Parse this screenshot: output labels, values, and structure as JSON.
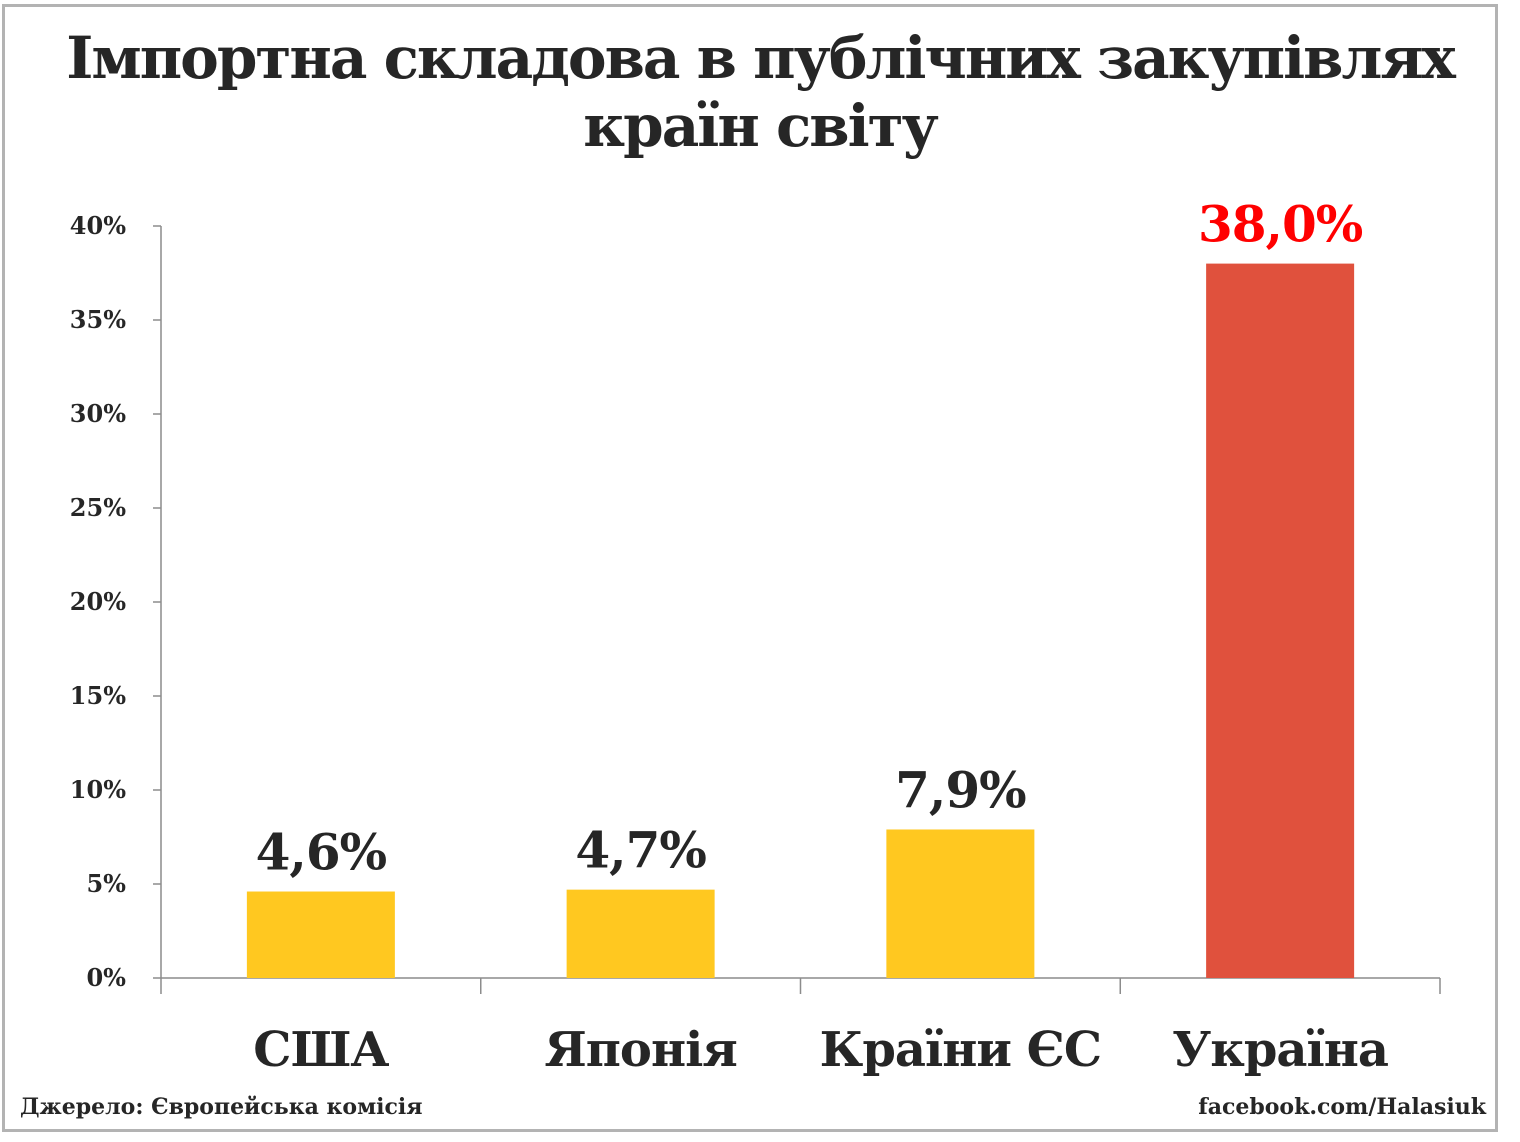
{
  "chart_data": {
    "type": "bar",
    "title_lines": [
      "Імпортна складова в публічних закупівлях",
      "країн світу"
    ],
    "categories": [
      "США",
      "Японія",
      "Країни ЄС",
      "Україна"
    ],
    "values": [
      4.6,
      4.7,
      7.9,
      38.0
    ],
    "value_labels": [
      "4,6%",
      "4,7%",
      "7,9%",
      "38,0%"
    ],
    "colors": [
      "#FFC820",
      "#FFC820",
      "#FFC820",
      "#E0513D"
    ],
    "label_colors": [
      "#262626",
      "#262626",
      "#262626",
      "#FF0000"
    ],
    "ylim": [
      0,
      40
    ],
    "yticks": [
      0,
      5,
      10,
      15,
      20,
      25,
      30,
      35,
      40
    ],
    "ytick_labels": [
      "0%",
      "5%",
      "10%",
      "15%",
      "20%",
      "25%",
      "30%",
      "35%",
      "40%"
    ],
    "grid": false,
    "xlabel": "",
    "ylabel": ""
  },
  "footer": {
    "source": "Джерело: Європейська комісія",
    "credit": "facebook.com/Halasiuk"
  }
}
